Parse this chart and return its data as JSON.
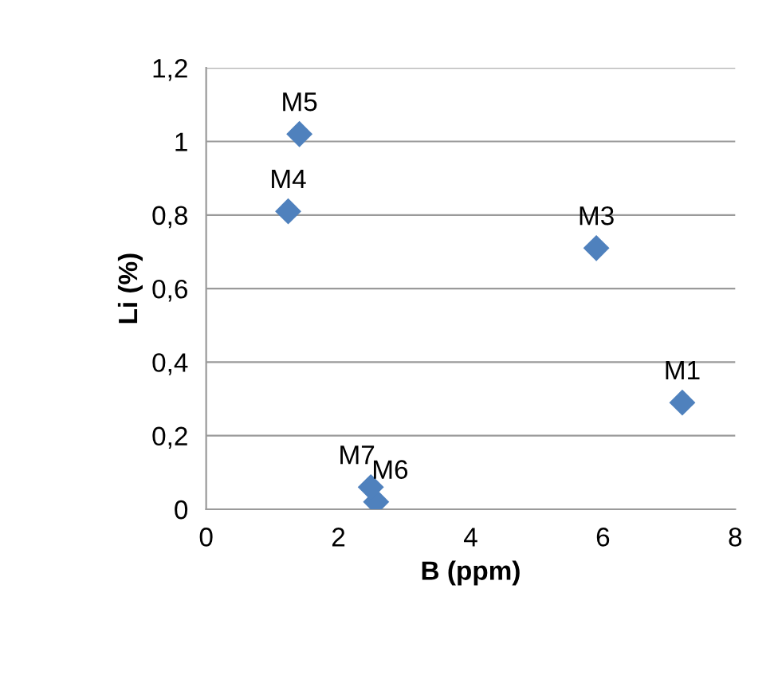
{
  "chart_data": {
    "type": "scatter",
    "xlabel": "B (ppm)",
    "ylabel": "Li (%)",
    "x": [
      7.2,
      5.9,
      1.24,
      1.41,
      2.57,
      2.49
    ],
    "values": [
      0.29,
      0.71,
      0.81,
      1.02,
      0.02,
      0.06
    ],
    "color": "#4f81bd",
    "marker": "diamond",
    "xlim": [
      0,
      8
    ],
    "xticks": [
      0,
      2,
      4,
      6,
      8
    ],
    "ylim": [
      0,
      1.2
    ],
    "yticks": [
      {
        "value": 0,
        "label": "0"
      },
      {
        "value": 0.2,
        "label": "0,2"
      },
      {
        "value": 0.4,
        "label": "0,4"
      },
      {
        "value": 0.6,
        "label": "0,6"
      },
      {
        "value": 0.8,
        "label": "0,8"
      },
      {
        "value": 1,
        "label": "1"
      },
      {
        "value": 1.2,
        "label": "1,2"
      }
    ],
    "grid": "y",
    "annotations": [
      {
        "text": "M1",
        "x": 7.2,
        "y": 0.29
      },
      {
        "text": "M3",
        "x": 5.9,
        "y": 0.71
      },
      {
        "text": "M4",
        "x": 1.24,
        "y": 0.81
      },
      {
        "text": "M5",
        "x": 1.41,
        "y": 1.02
      },
      {
        "text": "M6",
        "x": 2.57,
        "y": 0.02
      },
      {
        "text": "M7",
        "x": 2.49,
        "y": 0.06
      }
    ]
  }
}
